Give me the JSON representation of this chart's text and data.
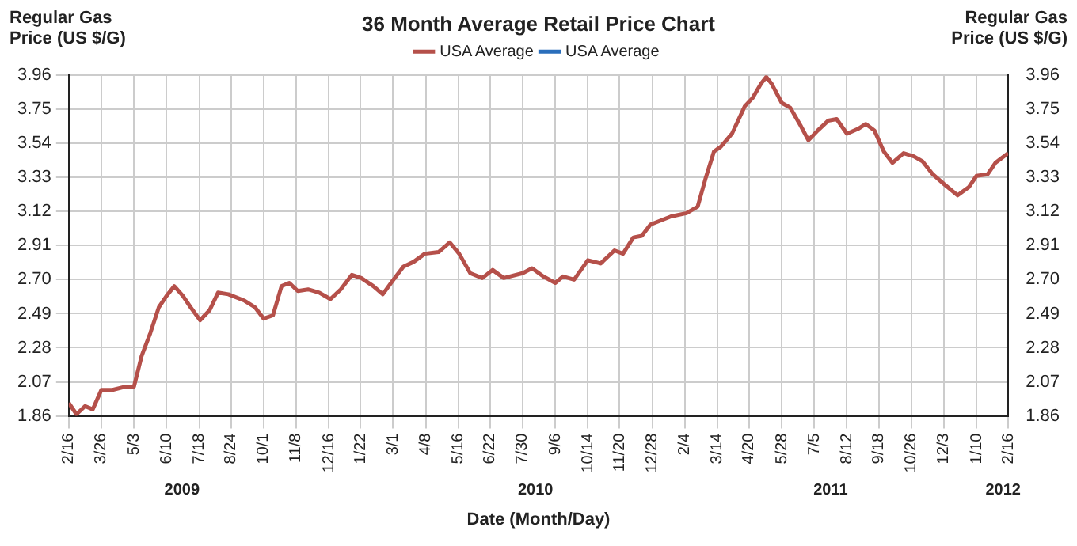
{
  "chart_data": {
    "type": "line",
    "title": "36 Month Average Retail Price Chart",
    "xlabel": "Date (Month/Day)",
    "ylabel": "Regular Gas Price (US $/G)",
    "y2label": "Regular Gas Price (US $/G)",
    "x": [
      "2009-02-16",
      "2009-02-25",
      "2009-03-07",
      "2009-03-16",
      "2009-03-26",
      "2009-04-08",
      "2009-04-23",
      "2009-05-03",
      "2009-05-12",
      "2009-05-22",
      "2009-06-01",
      "2009-06-10",
      "2009-06-19",
      "2009-06-29",
      "2009-07-08",
      "2009-07-19",
      "2009-07-30",
      "2009-08-09",
      "2009-08-21",
      "2009-09-09",
      "2009-09-21",
      "2009-10-01",
      "2009-10-12",
      "2009-10-22",
      "2009-10-31",
      "2009-11-10",
      "2009-11-22",
      "2009-12-05",
      "2009-12-18",
      "2009-12-30",
      "2010-01-12",
      "2010-01-23",
      "2010-02-06",
      "2010-02-17",
      "2010-02-28",
      "2010-03-13",
      "2010-03-25",
      "2010-04-07",
      "2010-04-23",
      "2010-05-06",
      "2010-05-17",
      "2010-05-30",
      "2010-06-13",
      "2010-06-25",
      "2010-07-08",
      "2010-07-30",
      "2010-08-10",
      "2010-08-23",
      "2010-09-06",
      "2010-09-15",
      "2010-09-28",
      "2010-10-14",
      "2010-10-29",
      "2010-11-14",
      "2010-11-24",
      "2010-12-06",
      "2010-12-16",
      "2010-12-26",
      "2011-01-19",
      "2011-02-06",
      "2011-02-19",
      "2011-02-28",
      "2011-03-10",
      "2011-03-18",
      "2011-03-31",
      "2011-04-15",
      "2011-04-24",
      "2011-05-04",
      "2011-05-10",
      "2011-05-16",
      "2011-05-28",
      "2011-06-07",
      "2011-06-19",
      "2011-06-28",
      "2011-07-09",
      "2011-07-21",
      "2011-07-31",
      "2011-08-12",
      "2011-08-25",
      "2011-09-03",
      "2011-09-13",
      "2011-09-24",
      "2011-10-04",
      "2011-10-17",
      "2011-10-29",
      "2011-11-08",
      "2011-11-20",
      "2011-12-03",
      "2011-12-19",
      "2012-01-01",
      "2012-01-10",
      "2012-01-23",
      "2012-02-01",
      "2012-02-16"
    ],
    "series": [
      {
        "name": "USA Average",
        "color": "#b5504a",
        "values": [
          1.94,
          1.87,
          1.92,
          1.9,
          2.02,
          2.02,
          2.04,
          2.04,
          2.23,
          2.37,
          2.53,
          2.6,
          2.66,
          2.6,
          2.53,
          2.45,
          2.51,
          2.62,
          2.61,
          2.57,
          2.53,
          2.46,
          2.48,
          2.66,
          2.68,
          2.63,
          2.64,
          2.62,
          2.58,
          2.64,
          2.73,
          2.71,
          2.66,
          2.61,
          2.69,
          2.78,
          2.81,
          2.86,
          2.87,
          2.93,
          2.86,
          2.74,
          2.71,
          2.76,
          2.71,
          2.74,
          2.77,
          2.72,
          2.68,
          2.72,
          2.7,
          2.82,
          2.8,
          2.88,
          2.86,
          2.96,
          2.97,
          3.04,
          3.09,
          3.11,
          3.15,
          3.32,
          3.49,
          3.52,
          3.6,
          3.77,
          3.82,
          3.91,
          3.95,
          3.91,
          3.79,
          3.76,
          3.65,
          3.56,
          3.62,
          3.68,
          3.69,
          3.6,
          3.63,
          3.66,
          3.62,
          3.49,
          3.42,
          3.48,
          3.46,
          3.43,
          3.35,
          3.29,
          3.22,
          3.27,
          3.34,
          3.35,
          3.42,
          3.48
        ]
      },
      {
        "name": "USA Average",
        "color": "#2a6ebb",
        "values": [
          null,
          null,
          null,
          null,
          null,
          null,
          null,
          null,
          null,
          null,
          null,
          null,
          null,
          null,
          null,
          null,
          null,
          null,
          null,
          null,
          null,
          null,
          null,
          null,
          null,
          null,
          null,
          null,
          null,
          null,
          null,
          null,
          null,
          null,
          null,
          null,
          null,
          null,
          null,
          null,
          null,
          null,
          null,
          null,
          null,
          null,
          null,
          null,
          null,
          null,
          null,
          null,
          null,
          null,
          null,
          null,
          null,
          null,
          null,
          null,
          null,
          null,
          null,
          null,
          null,
          null,
          null,
          null,
          null,
          null,
          null,
          null,
          null,
          null,
          null,
          null,
          null,
          null,
          null,
          null,
          null,
          null,
          null,
          null,
          null,
          null,
          null,
          null,
          null,
          null,
          null,
          null,
          null,
          null
        ]
      }
    ],
    "xlim": [
      "2009-02-16",
      "2012-02-16"
    ],
    "xticks": [
      {
        "value": "2009-02-16",
        "label": "2/16"
      },
      {
        "value": "2009-03-26",
        "label": "3/26"
      },
      {
        "value": "2009-05-03",
        "label": "5/3"
      },
      {
        "value": "2009-06-10",
        "label": "6/10"
      },
      {
        "value": "2009-07-18",
        "label": "7/18"
      },
      {
        "value": "2009-08-24",
        "label": "8/24"
      },
      {
        "value": "2009-10-01",
        "label": "10/1"
      },
      {
        "value": "2009-11-08",
        "label": "11/8"
      },
      {
        "value": "2009-12-16",
        "label": "12/16"
      },
      {
        "value": "2010-01-22",
        "label": "1/22"
      },
      {
        "value": "2010-03-01",
        "label": "3/1"
      },
      {
        "value": "2010-04-08",
        "label": "4/8"
      },
      {
        "value": "2010-05-16",
        "label": "5/16"
      },
      {
        "value": "2010-06-22",
        "label": "6/22"
      },
      {
        "value": "2010-07-30",
        "label": "7/30"
      },
      {
        "value": "2010-09-06",
        "label": "9/6"
      },
      {
        "value": "2010-10-14",
        "label": "10/14"
      },
      {
        "value": "2010-11-20",
        "label": "11/20"
      },
      {
        "value": "2010-12-28",
        "label": "12/28"
      },
      {
        "value": "2011-02-04",
        "label": "2/4"
      },
      {
        "value": "2011-03-14",
        "label": "3/14"
      },
      {
        "value": "2011-04-20",
        "label": "4/20"
      },
      {
        "value": "2011-05-28",
        "label": "5/28"
      },
      {
        "value": "2011-07-05",
        "label": "7/5"
      },
      {
        "value": "2011-08-12",
        "label": "8/12"
      },
      {
        "value": "2011-09-18",
        "label": "9/18"
      },
      {
        "value": "2011-10-26",
        "label": "10/26"
      },
      {
        "value": "2011-12-03",
        "label": "12/3"
      },
      {
        "value": "2012-01-10",
        "label": "1/10"
      },
      {
        "value": "2012-02-16",
        "label": "2/16"
      }
    ],
    "ylim": [
      1.86,
      3.96
    ],
    "yticks": [
      1.86,
      2.07,
      2.28,
      2.49,
      {
        "value": 2.7,
        "label": "2.70"
      },
      2.91,
      3.12,
      3.33,
      3.54,
      3.75,
      3.96
    ],
    "y2lim": [
      1.86,
      3.96
    ],
    "y2ticks": [
      1.86,
      2.07,
      2.28,
      2.49,
      {
        "value": 2.7,
        "label": "2.70"
      },
      2.91,
      3.12,
      3.33,
      3.54,
      3.75,
      3.96
    ],
    "x2lim": [
      "2009-02-16",
      "2012-02-16"
    ],
    "x2ticks": [
      {
        "value": "2009-06-28",
        "label": "2009"
      },
      {
        "value": "2010-08-14",
        "label": "2010"
      },
      {
        "value": "2011-07-24",
        "label": "2011"
      },
      {
        "value": "2012-02-10",
        "label": "2012"
      }
    ],
    "grid": true,
    "legend": "top",
    "marker": "none",
    "line_style": "solid"
  }
}
